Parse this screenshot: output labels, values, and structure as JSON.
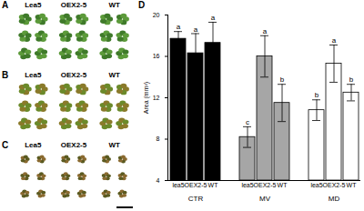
{
  "chart_data": {
    "type": "bar",
    "title": "D",
    "ylabel": "Area (mm²)",
    "categories": [
      "lea5",
      "OEX2-5",
      "WT"
    ],
    "series": [
      {
        "name": "CTR",
        "color": "#000000",
        "values": [
          17.7,
          16.3,
          17.3
        ],
        "errors": [
          0.7,
          1.9,
          2.0
        ],
        "letters": [
          "a",
          "a",
          "a"
        ]
      },
      {
        "name": "MV",
        "color": "#a6a6a6",
        "values": [
          8.2,
          16.0,
          11.5
        ],
        "errors": [
          1.0,
          2.0,
          1.8
        ],
        "letters": [
          "c",
          "a",
          "b"
        ]
      },
      {
        "name": "MD",
        "color": "#ffffff",
        "values": [
          10.8,
          15.3,
          12.5
        ],
        "errors": [
          1.0,
          1.8,
          0.8
        ],
        "letters": [
          "b",
          "a",
          "b"
        ]
      }
    ],
    "ylim": [
      4,
      20
    ],
    "yticks": [
      4,
      8,
      12,
      16,
      20
    ],
    "grid": false
  },
  "photo_panels": [
    {
      "label": "A",
      "columns": [
        "Lea5",
        "OEX2-5",
        "WT"
      ]
    },
    {
      "label": "B",
      "columns": [
        "Lea5",
        "OEX2-5",
        "WT"
      ]
    },
    {
      "label": "C",
      "columns": [
        "Lea5",
        "OEX2-5",
        "WT"
      ]
    }
  ]
}
